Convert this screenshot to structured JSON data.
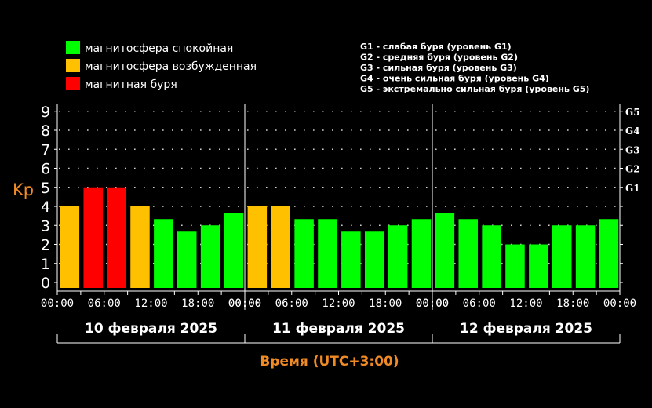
{
  "legend": {
    "items": [
      {
        "label": "магнитосфера спокойная",
        "color": "#00ff00"
      },
      {
        "label": "магнитосфера возбужденная",
        "color": "#ffc000"
      },
      {
        "label": "магнитная буря",
        "color": "#ff0000"
      }
    ]
  },
  "storm_levels": [
    "G1 - слабая буря (уровень G1)",
    "G2 - средняя буря (уровень G2)",
    "G3 - сильная буря (уровень G3)",
    "G4 - очень сильная буря (уровень G4)",
    "G5 - экстремально сильная буря (уровень G5)"
  ],
  "chart_data": {
    "type": "bar",
    "title": "",
    "ylabel": "Kp",
    "xlabel": "Время (UTC+3:00)",
    "ylim": [
      0,
      9
    ],
    "y_ticks": [
      "0",
      "1",
      "2",
      "3",
      "4",
      "5",
      "6",
      "7",
      "8",
      "9"
    ],
    "right_ticks": [
      {
        "label": "G1",
        "value": 5
      },
      {
        "label": "G2",
        "value": 6
      },
      {
        "label": "G3",
        "value": 7
      },
      {
        "label": "G4",
        "value": 8
      },
      {
        "label": "G5",
        "value": 9
      }
    ],
    "x_tick_labels": [
      "00:00",
      "06:00",
      "12:00",
      "18:00",
      "00:00"
    ],
    "days": [
      "10 февраля 2025",
      "11 февраля 2025",
      "12 февраля 2025"
    ],
    "bars_per_day": 8,
    "values": [
      4,
      5,
      5,
      4,
      3.33,
      2.67,
      3,
      3.67,
      4,
      4,
      3.33,
      3.33,
      2.67,
      2.67,
      3,
      3.33,
      3.67,
      3.33,
      3,
      2,
      2,
      3,
      3,
      3.33
    ],
    "grid": true,
    "legend_position": "top-left"
  }
}
